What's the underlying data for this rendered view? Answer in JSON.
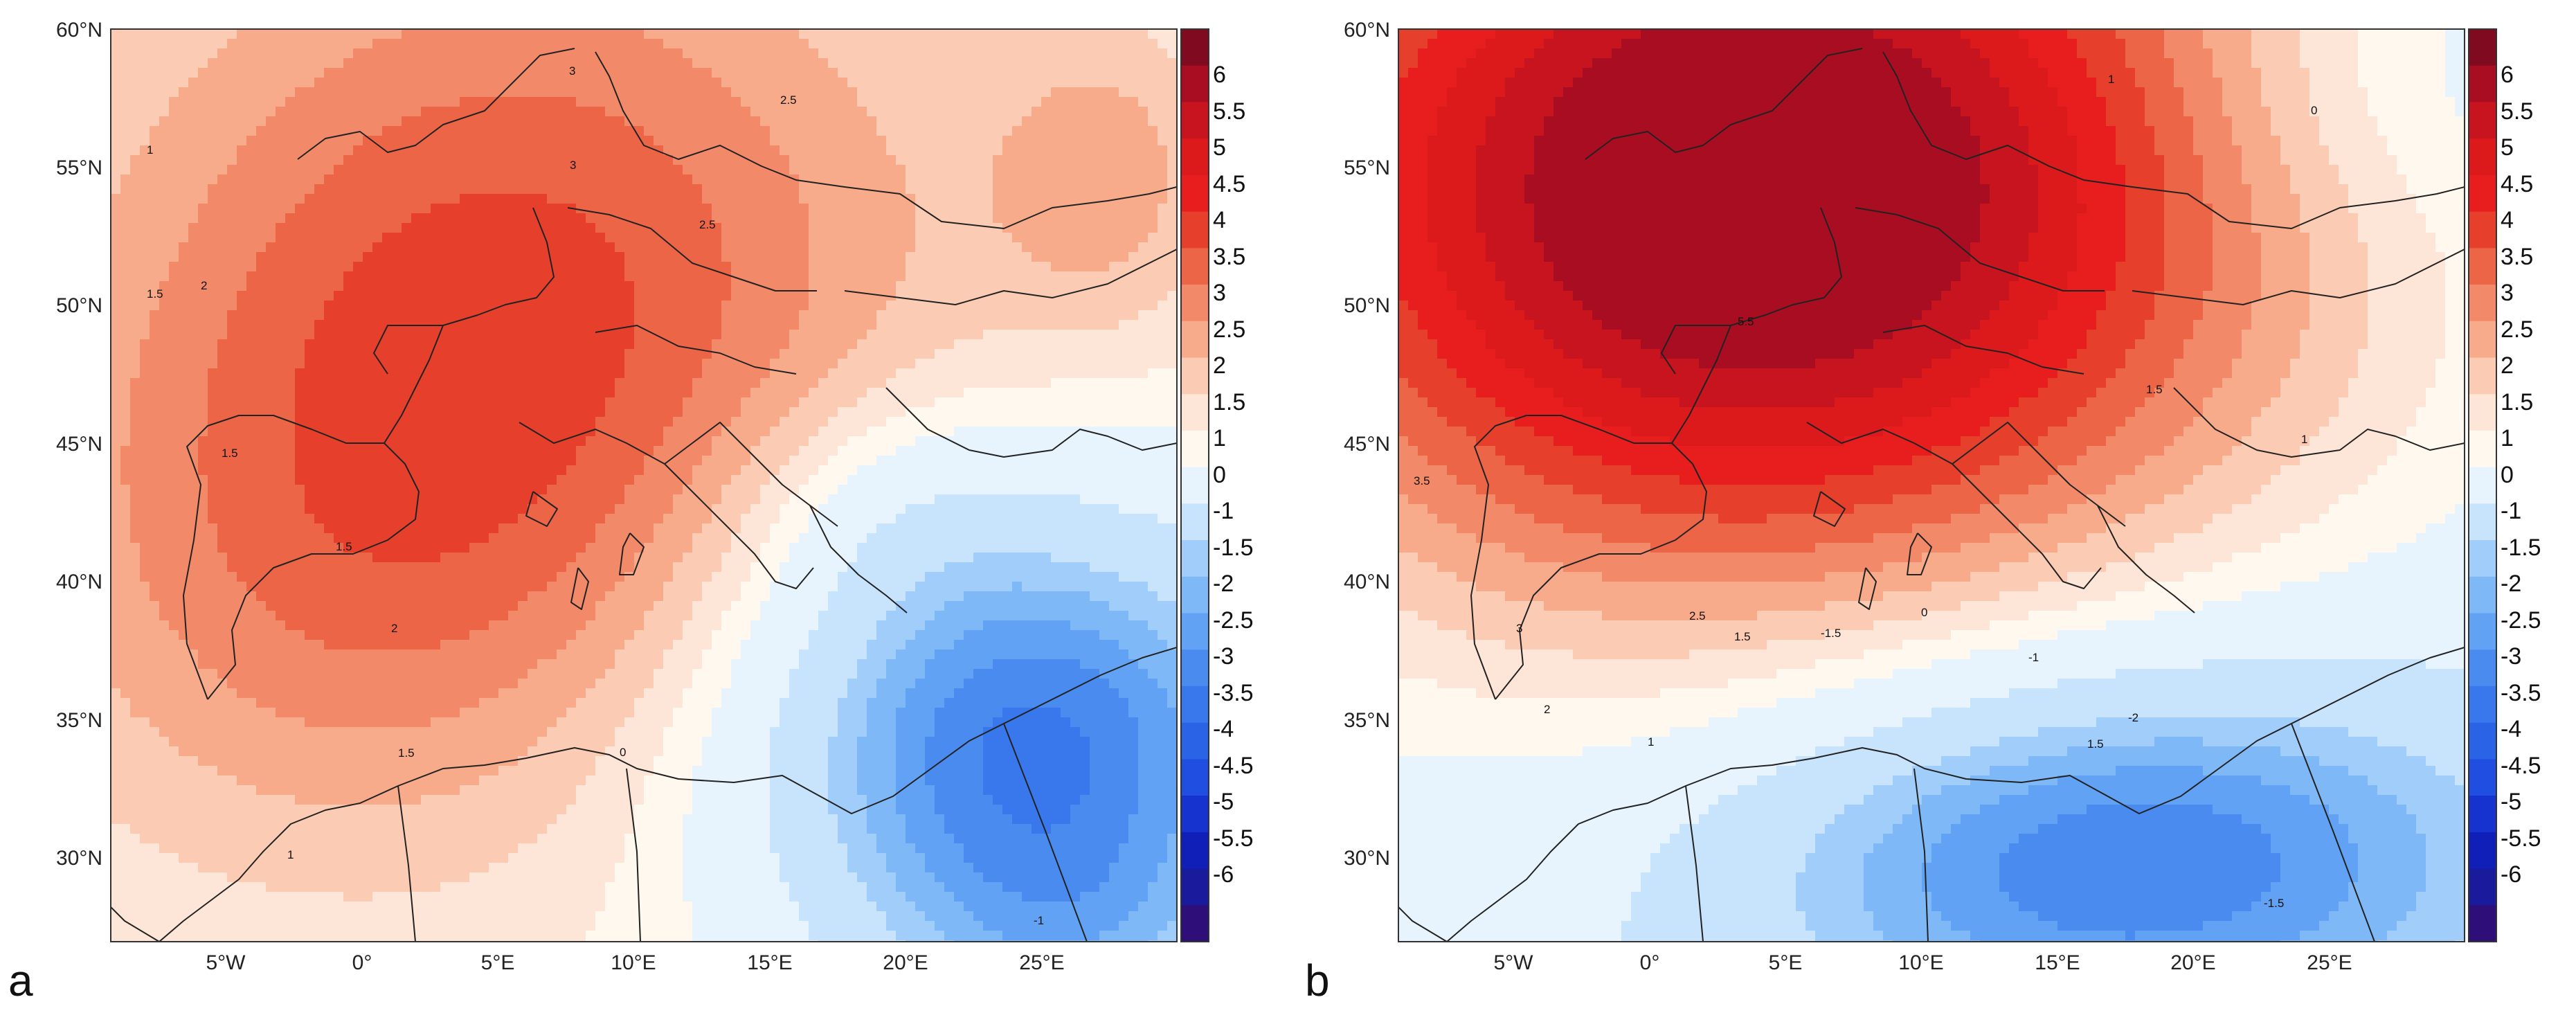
{
  "figure": {
    "panels": [
      {
        "label": "a",
        "lat_ticks": [
          "60°N",
          "55°N",
          "50°N",
          "45°N",
          "40°N",
          "35°N",
          "30°N"
        ],
        "lon_ticks": [
          "5°W",
          "0°",
          "5°E",
          "10°E",
          "15°E",
          "20°E",
          "25°E"
        ],
        "colorbar_levels": [
          "6",
          "5.5",
          "5",
          "4.5",
          "4",
          "3.5",
          "3",
          "2.5",
          "2",
          "1.5",
          "1",
          "0",
          "-1",
          "-1.5",
          "-2",
          "-2.5",
          "-3",
          "-3.5",
          "-4",
          "-4.5",
          "-5",
          "-5.5",
          "-6"
        ],
        "contour_labels": [
          "1",
          "1.5",
          "2",
          "2.5",
          "3",
          "3",
          "2.5",
          "1.5",
          "1.5",
          "1.5",
          "2",
          "1",
          "0",
          "-1"
        ],
        "field": {
          "background": 1.3,
          "centers": [
            {
              "lon": 5,
              "lat": 51.5,
              "amp": 2.6,
              "slon": 11,
              "slat": 10
            },
            {
              "lon": -2,
              "lat": 40,
              "amp": 1.4,
              "slon": 9,
              "slat": 8
            },
            {
              "lon": 26,
              "lat": 55,
              "amp": 1.2,
              "slon": 3,
              "slat": 4
            },
            {
              "lon": 23,
              "lat": 34.5,
              "amp": -4.6,
              "slon": 7,
              "slat": 6
            },
            {
              "lon": 25,
              "lat": 27,
              "amp": -1.2,
              "slon": 5,
              "slat": 3
            },
            {
              "lon": 18,
              "lat": 43,
              "amp": -0.8,
              "slon": 4,
              "slat": 3
            }
          ]
        }
      },
      {
        "label": "b",
        "lat_ticks": [
          "60°N",
          "55°N",
          "50°N",
          "45°N",
          "40°N",
          "35°N",
          "30°N"
        ],
        "lon_ticks": [
          "5°W",
          "0°",
          "5°E",
          "10°E",
          "15°E",
          "20°E",
          "25°E"
        ],
        "colorbar_levels": [
          "6",
          "5.5",
          "5",
          "4.5",
          "4",
          "3.5",
          "3",
          "2.5",
          "2",
          "1.5",
          "1",
          "0",
          "-1",
          "-1.5",
          "-2",
          "-2.5",
          "-3",
          "-3.5",
          "-4",
          "-4.5",
          "-5",
          "-5.5",
          "-6"
        ],
        "contour_labels": [
          "3.5",
          "3",
          "2.5",
          "2",
          "1.5",
          "1",
          "1",
          "0",
          "1",
          "1.5",
          "5.5",
          "1.5",
          "-1",
          "-1.5",
          "-2",
          "0",
          "-1.5"
        ],
        "field": {
          "background": 0.3,
          "centers": [
            {
              "lon": 3,
              "lat": 54.5,
              "amp": 6.8,
              "slon": 14,
              "slat": 11
            },
            {
              "lon": 16,
              "lat": 30.5,
              "amp": -3.6,
              "slon": 10,
              "slat": 5
            },
            {
              "lon": 25,
              "lat": 58,
              "amp": -0.7,
              "slon": 6,
              "slat": 4
            }
          ]
        }
      }
    ]
  },
  "colors": {
    "levels": [
      "#2e0f7a",
      "#1a1a9c",
      "#0f1fb8",
      "#1633d0",
      "#1f4ee0",
      "#2a63e6",
      "#3978ec",
      "#4a8bf0",
      "#62a2f4",
      "#7fb8f7",
      "#a0cdfa",
      "#c8e3fc",
      "#e8f4fd",
      "#fef8ef",
      "#fde6d8",
      "#fbcbb3",
      "#f7ab8b",
      "#f28a6a",
      "#ec6547",
      "#e6402d",
      "#e81e1e",
      "#dc1a1c",
      "#c8141f",
      "#a90d22",
      "#800a20"
    ],
    "coast": "#222222"
  }
}
